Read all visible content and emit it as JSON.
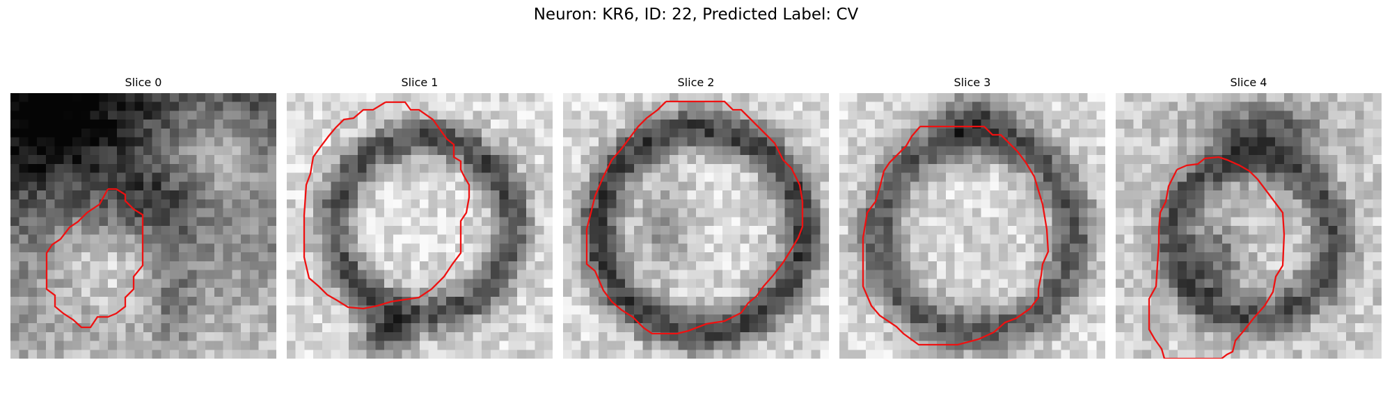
{
  "figure": {
    "title": "Neuron: KR6, ID: 22, Predicted Label: CV"
  },
  "panels": [
    {
      "label": "Slice 0"
    },
    {
      "label": "Slice 1"
    },
    {
      "label": "Slice 2"
    },
    {
      "label": "Slice 3"
    },
    {
      "label": "Slice 4"
    }
  ],
  "colors": {
    "contour": "#ee1111",
    "background": "#ffffff"
  }
}
